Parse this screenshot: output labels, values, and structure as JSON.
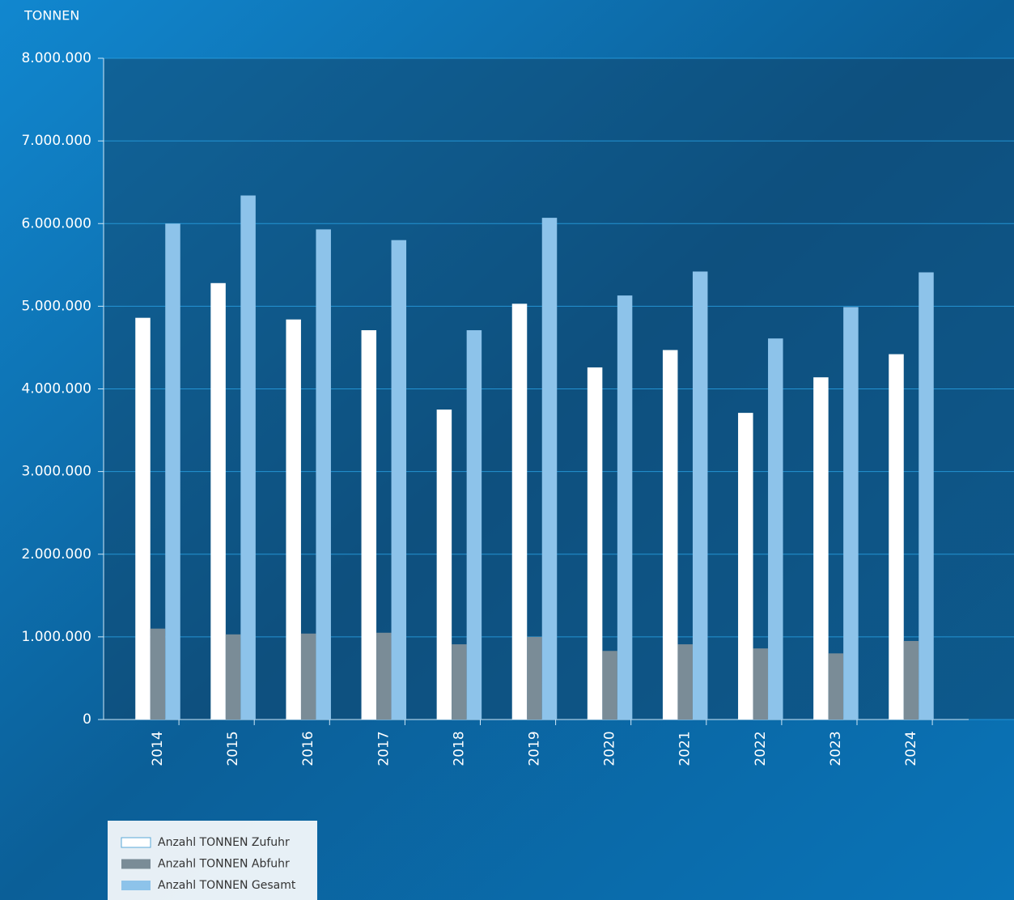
{
  "chart_data": {
    "type": "bar",
    "y_axis_label": "TONNEN",
    "categories": [
      "2014",
      "2015",
      "2016",
      "2017",
      "2018",
      "2019",
      "2020",
      "2021",
      "2022",
      "2023",
      "2024"
    ],
    "series": [
      {
        "name": "Anzahl TONNEN Zufuhr",
        "color": "#ffffff",
        "values": [
          4860000,
          5280000,
          4840000,
          4710000,
          3750000,
          5030000,
          4260000,
          4470000,
          3710000,
          4140000,
          4420000
        ]
      },
      {
        "name": "Anzahl TONNEN Abfuhr",
        "color": "#7a8c97",
        "values": [
          1100000,
          1030000,
          1040000,
          1050000,
          910000,
          1000000,
          830000,
          910000,
          860000,
          800000,
          950000
        ]
      },
      {
        "name": "Anzahl TONNEN Gesamt",
        "color": "#8dc3ea",
        "values": [
          6000000,
          6340000,
          5930000,
          5800000,
          4710000,
          6070000,
          5130000,
          5420000,
          4610000,
          4990000,
          5410000
        ]
      }
    ],
    "ylim": [
      0,
      8000000
    ],
    "yticks": [
      0,
      {
        "value": 1000000,
        "label": "1.000.000"
      },
      {
        "value": 2000000,
        "label": "2.000.000"
      },
      {
        "value": 3000000,
        "label": "3.000.000"
      },
      {
        "value": 4000000,
        "label": "4.000.000"
      },
      {
        "value": 5000000,
        "label": "5.000.000"
      },
      {
        "value": 6000000,
        "label": "6.000.000"
      },
      {
        "value": 7000000,
        "label": "7.000.000"
      },
      {
        "value": 8000000,
        "label": "8.000.000"
      }
    ],
    "grid": true
  }
}
